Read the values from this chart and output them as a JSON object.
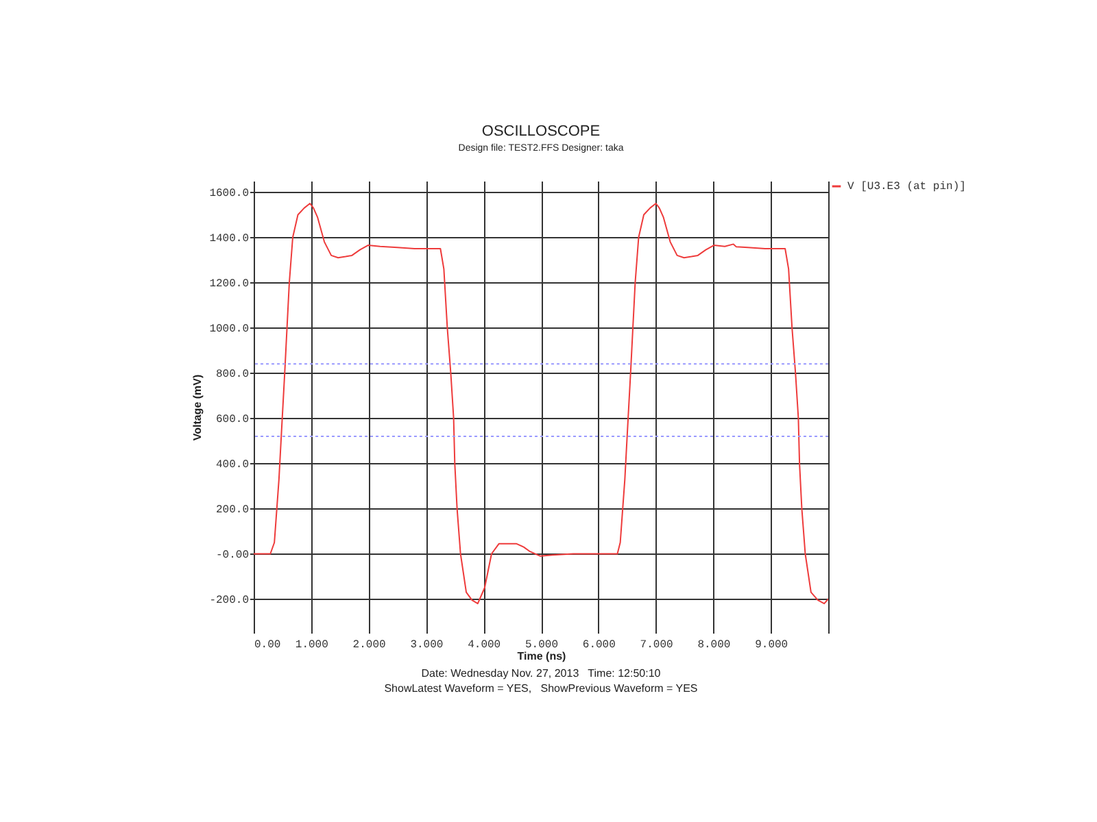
{
  "chart_data": {
    "type": "line",
    "title": "OSCILLOSCOPE",
    "subtitle": "Design file: TEST2.FFS      Designer: taka",
    "xlabel": "Time (ns)",
    "ylabel": "Voltage (mV)",
    "annotations": [
      "Date: Wednesday Nov. 27, 2013   Time: 12:50:10",
      "ShowLatest Waveform = YES,   ShowPrevious Waveform = YES"
    ],
    "x": [
      0,
      0.29,
      0.36,
      0.44,
      0.48,
      0.54,
      0.58,
      0.62,
      0.68,
      0.77,
      0.88,
      0.98,
      1.04,
      1.11,
      1.23,
      1.35,
      1.47,
      1.6,
      1.71,
      1.85,
      1.99,
      2.2,
      2.5,
      2.8,
      3.25,
      3.31,
      3.37,
      3.43,
      3.48,
      3.5,
      3.54,
      3.6,
      3.7,
      3.8,
      3.9,
      4.02,
      4.14,
      4.27,
      4.57,
      4.7,
      4.81,
      4.99,
      5.2,
      5.56,
      6.33,
      6.38,
      6.46,
      6.5,
      6.56,
      6.6,
      6.64,
      6.7,
      6.79,
      6.9,
      7.0,
      7.06,
      7.13,
      7.25,
      7.37,
      7.49,
      7.62,
      7.73,
      7.87,
      8.01,
      8.2,
      8.35,
      8.4,
      8.6,
      8.9,
      9.25,
      9.31,
      9.37,
      9.43,
      9.48,
      9.5,
      9.54,
      9.6,
      9.7,
      9.82,
      9.93,
      10.0
    ],
    "series": [
      {
        "name": "V [U3.E3 (at pin)]",
        "color": "#ee3b3b",
        "values": [
          0,
          0,
          50,
          330,
          520,
          800,
          1000,
          1200,
          1400,
          1500,
          1530,
          1550,
          1530,
          1490,
          1380,
          1320,
          1310,
          1315,
          1320,
          1345,
          1365,
          1360,
          1355,
          1350,
          1350,
          1260,
          1000,
          800,
          600,
          400,
          200,
          0,
          -170,
          -205,
          -220,
          -150,
          0,
          45,
          45,
          30,
          10,
          -10,
          -5,
          0,
          0,
          50,
          330,
          520,
          800,
          1000,
          1200,
          1400,
          1500,
          1530,
          1550,
          1530,
          1490,
          1380,
          1320,
          1310,
          1315,
          1320,
          1345,
          1365,
          1360,
          1370,
          1358,
          1355,
          1350,
          1350,
          1260,
          1000,
          800,
          600,
          400,
          200,
          0,
          -170,
          -205,
          -220,
          -200
        ]
      }
    ],
    "xlim": [
      0,
      10
    ],
    "ylim": [
      -350,
      1650
    ],
    "xticks": [
      {
        "value": 0,
        "label": "0.00"
      },
      {
        "value": 1,
        "label": "1.000"
      },
      {
        "value": 2,
        "label": "2.000"
      },
      {
        "value": 3,
        "label": "3.000"
      },
      {
        "value": 4,
        "label": "4.000"
      },
      {
        "value": 5,
        "label": "5.000"
      },
      {
        "value": 6,
        "label": "6.000"
      },
      {
        "value": 7,
        "label": "7.000"
      },
      {
        "value": 8,
        "label": "8.000"
      },
      {
        "value": 9,
        "label": "9.000"
      },
      {
        "value": 10,
        "label": null
      }
    ],
    "yticks": [
      {
        "value": -200,
        "label": "-200.0"
      },
      {
        "value": 0,
        "label": "-0.00"
      },
      {
        "value": 200,
        "label": "200.0"
      },
      {
        "value": 400,
        "label": "400.0"
      },
      {
        "value": 600,
        "label": "600.0"
      },
      {
        "value": 800,
        "label": "800.0"
      },
      {
        "value": 1000,
        "label": "1000.0"
      },
      {
        "value": 1200,
        "label": "1200.0"
      },
      {
        "value": 1400,
        "label": "1400.0"
      },
      {
        "value": 1600,
        "label": "1600.0"
      }
    ],
    "ref_lines": [
      {
        "axis": "y",
        "value": 840,
        "color": "#9999ff",
        "line_style": "dotted"
      },
      {
        "axis": "y",
        "value": 520,
        "color": "#9999ff",
        "line_style": "dotted"
      }
    ],
    "grid": true,
    "legend": "top right"
  }
}
